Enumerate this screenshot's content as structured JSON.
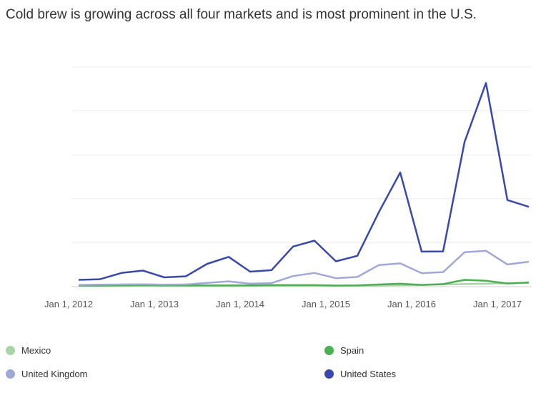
{
  "chart_data": {
    "type": "line",
    "title": "Cold brew is growing across all four markets and is most prominent in the U.S.",
    "x_tick_labels": [
      "Jan 1, 2012",
      "Jan 1, 2013",
      "Jan 1, 2014",
      "Jan 1, 2015",
      "Jan 1, 2016",
      "Jan 1, 2017"
    ],
    "x": [
      "2012-01",
      "2012-04",
      "2012-07",
      "2012-10",
      "2013-01",
      "2013-04",
      "2013-07",
      "2013-10",
      "2014-01",
      "2014-04",
      "2014-07",
      "2014-10",
      "2015-01",
      "2015-04",
      "2015-07",
      "2015-10",
      "2016-01",
      "2016-04",
      "2016-07",
      "2016-10",
      "2017-01",
      "2017-04"
    ],
    "ylim": [
      0,
      100
    ],
    "grid": true,
    "legend_position": "bottom",
    "series": [
      {
        "name": "Mexico",
        "color": "#a8d5a8",
        "values": [
          0.3,
          0.3,
          0.3,
          0.3,
          0.3,
          0.3,
          0.3,
          0.3,
          0.4,
          0.4,
          0.4,
          0.4,
          0.5,
          0.5,
          0.6,
          0.7,
          0.8,
          1.0,
          1.2,
          1.4,
          1.6,
          1.8
        ]
      },
      {
        "name": "Spain",
        "color": "#4caf50",
        "values": [
          0.5,
          0.5,
          0.6,
          0.7,
          0.6,
          0.6,
          0.6,
          0.6,
          0.6,
          0.7,
          0.7,
          0.7,
          0.5,
          0.6,
          1.0,
          1.4,
          0.8,
          1.2,
          3.2,
          2.8,
          1.5,
          2.0
        ]
      },
      {
        "name": "United Kingdom",
        "color": "#a0a8d8",
        "values": [
          0.8,
          0.9,
          1.0,
          1.1,
          0.9,
          1.0,
          1.8,
          2.5,
          1.4,
          1.7,
          5.0,
          6.5,
          4.0,
          4.6,
          10.2,
          11.0,
          6.4,
          6.9,
          16.3,
          17.0,
          10.5,
          11.8
        ]
      },
      {
        "name": "United States",
        "color": "#3949ab",
        "values": [
          3.2,
          3.5,
          6.5,
          7.6,
          4.4,
          4.9,
          10.8,
          14.1,
          7.1,
          7.8,
          19.0,
          21.8,
          12.0,
          14.6,
          35.2,
          54.1,
          16.6,
          16.7,
          68.5,
          96.5,
          41.0,
          37.8
        ]
      }
    ]
  }
}
